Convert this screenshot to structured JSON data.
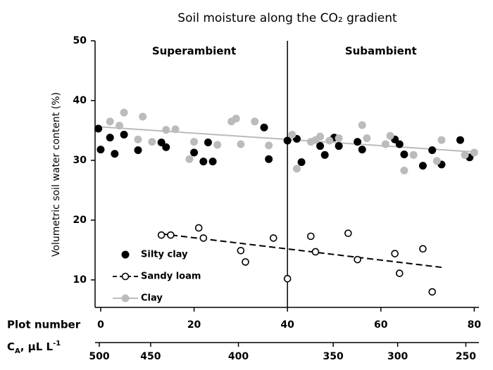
{
  "chart_data": {
    "type": "scatter",
    "title": "Soil moisture along the CO₂ gradient",
    "ylabel": "Volumetric soil water content (%)",
    "xlabel": "Plot number",
    "ylim": [
      5.4,
      50
    ],
    "yticks": [
      10,
      20,
      30,
      40,
      50
    ],
    "xlim": [
      -1.2,
      81
    ],
    "xticks": [
      0,
      20,
      40,
      60,
      80
    ],
    "divider_x": 40,
    "annotations": [
      {
        "text": "Superambient",
        "x": 20
      },
      {
        "text": "Subambient",
        "x": 60
      }
    ],
    "ca_axis": {
      "label": [
        "C",
        "A",
        ", μL L",
        "-1"
      ],
      "ticks": [
        500,
        450,
        400,
        350,
        300,
        250
      ],
      "tick_plot_positions": [
        -0.3,
        10.7,
        29.5,
        49.8,
        63.6,
        78.2
      ]
    },
    "series": [
      {
        "name": "Silty clay",
        "color": "#000000",
        "marker": "filled",
        "x": [
          -0.5,
          0,
          2,
          3,
          5,
          8,
          13,
          14,
          20,
          22,
          23,
          24,
          35,
          36,
          40,
          42,
          43,
          47,
          48,
          50,
          51,
          55,
          56,
          63,
          64,
          65,
          69,
          71,
          73,
          77,
          79
        ],
        "values": [
          35.3,
          31.8,
          33.8,
          31.1,
          34.3,
          31.7,
          33.0,
          32.2,
          31.3,
          29.8,
          33.0,
          29.8,
          35.5,
          30.2,
          33.3,
          33.6,
          29.7,
          32.4,
          30.9,
          33.8,
          32.4,
          33.1,
          31.8,
          33.5,
          32.7,
          31.0,
          29.1,
          31.7,
          29.3,
          33.4,
          30.5
        ]
      },
      {
        "name": "Sandy loam",
        "color": "#000000",
        "marker": "open",
        "trend_dash": true,
        "x": [
          13,
          15,
          21,
          22,
          30,
          31,
          37,
          40,
          45,
          46,
          53,
          55,
          63,
          64,
          69,
          71
        ],
        "values": [
          17.5,
          17.5,
          18.7,
          17.0,
          14.9,
          13.0,
          17.0,
          10.2,
          17.3,
          14.7,
          17.8,
          13.4,
          14.4,
          11.1,
          15.2,
          8.0
        ],
        "trend": {
          "x": [
            13,
            73
          ],
          "values": [
            17.7,
            12.1
          ]
        }
      },
      {
        "name": "Clay",
        "color": "#bbbbbb",
        "marker": "filled",
        "x": [
          2,
          4,
          5,
          8,
          9,
          11,
          14,
          16,
          19,
          20,
          25,
          28,
          29,
          30,
          33,
          36,
          41,
          42,
          45,
          46,
          47,
          49,
          51,
          56,
          57,
          61,
          62,
          65,
          67,
          72,
          73,
          78,
          80
        ],
        "values": [
          36.5,
          35.8,
          38.0,
          33.5,
          37.3,
          33.1,
          35.1,
          35.2,
          30.2,
          33.1,
          32.6,
          36.5,
          37.0,
          32.7,
          36.5,
          32.5,
          34.3,
          28.6,
          33.1,
          33.4,
          34.0,
          33.3,
          33.7,
          35.9,
          33.7,
          32.7,
          34.1,
          28.3,
          30.9,
          29.9,
          33.4,
          30.9,
          31.3
        ],
        "trend": {
          "x": [
            0,
            80
          ],
          "values": [
            35.6,
            31.4
          ]
        }
      }
    ]
  }
}
